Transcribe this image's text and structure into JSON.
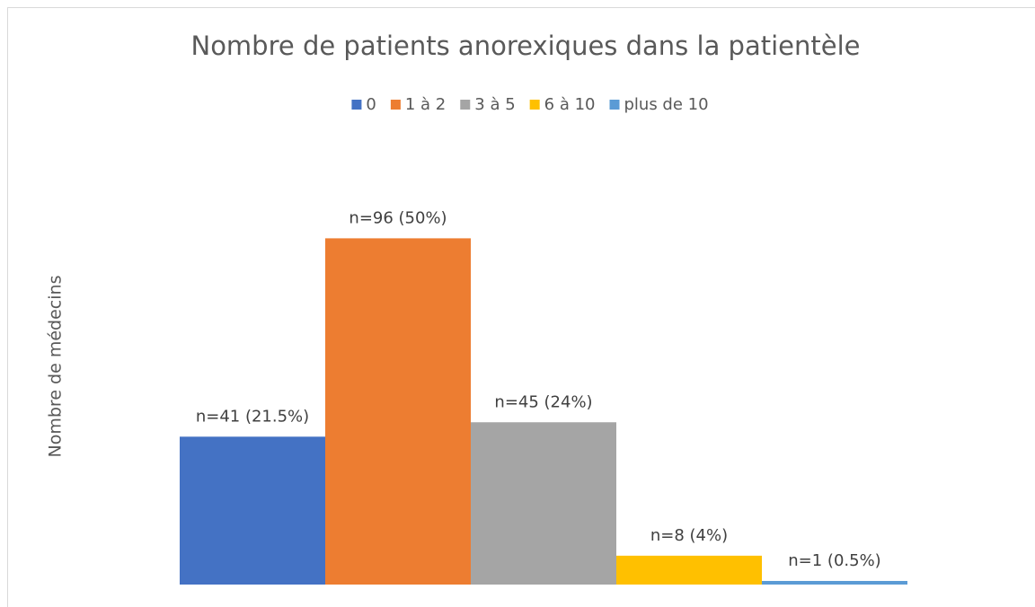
{
  "chart_data": {
    "type": "bar",
    "title": "Nombre de patients anorexiques dans la patientèle",
    "y_label": "Nombre de médecins",
    "categories": [
      null
    ],
    "series": [
      {
        "name": "0",
        "color": "#4472c4",
        "values": [
          41
        ],
        "value_labels": [
          "n=41 (21.5%)"
        ]
      },
      {
        "name": "1 à 2",
        "color": "#ed7d31",
        "values": [
          96
        ],
        "value_labels": [
          "n=96 (50%)"
        ]
      },
      {
        "name": "3 à 5",
        "color": "#a5a5a5",
        "values": [
          45
        ],
        "value_labels": [
          "n=45 (24%)"
        ]
      },
      {
        "name": "6 à 10",
        "color": "#ffc000",
        "values": [
          8
        ],
        "value_labels": [
          "n=8 (4%)"
        ]
      },
      {
        "name": "plus de 10",
        "color": "#5b9bd5",
        "values": [
          1
        ],
        "value_labels": [
          "n=1 (0.5%)"
        ]
      }
    ],
    "ylim": [
      0,
      120
    ],
    "legend": "top"
  }
}
